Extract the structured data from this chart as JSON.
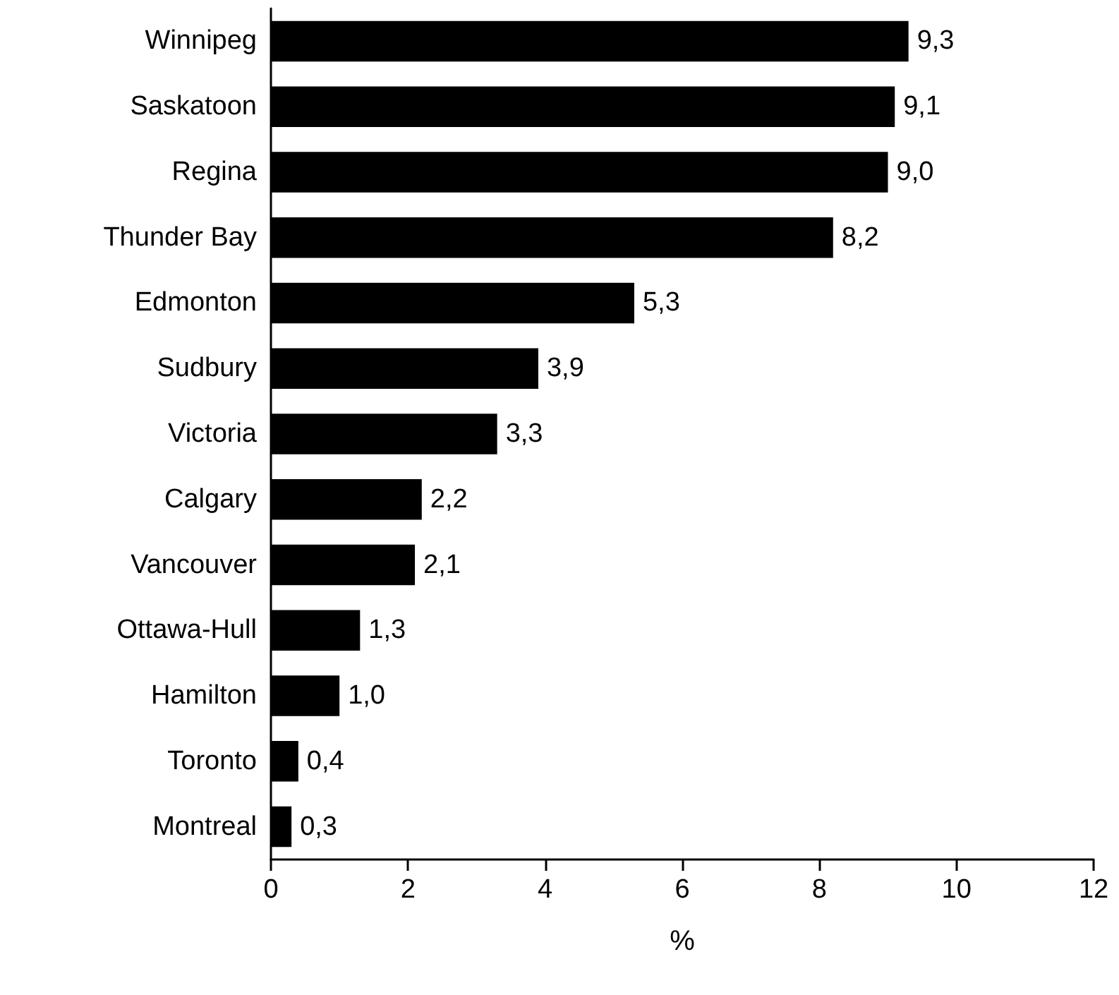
{
  "chart_data": {
    "type": "bar",
    "orientation": "horizontal",
    "xlabel": "%",
    "categories": [
      "Winnipeg",
      "Saskatoon",
      "Regina",
      "Thunder Bay",
      "Edmonton",
      "Sudbury",
      "Victoria",
      "Calgary",
      "Vancouver",
      "Ottawa-Hull",
      "Hamilton",
      "Toronto",
      "Montreal"
    ],
    "values": [
      9.3,
      9.1,
      9.0,
      8.2,
      5.3,
      3.9,
      3.3,
      2.2,
      2.1,
      1.3,
      1.0,
      0.4,
      0.3
    ],
    "value_labels": [
      "9,3",
      "9,1",
      "9,0",
      "8,2",
      "5,3",
      "3,9",
      "3,3",
      "2,2",
      "2,1",
      "1,3",
      "1,0",
      "0,4",
      "0,3"
    ],
    "color": "#000000",
    "xlim": [
      0,
      12
    ],
    "xticks": [
      0,
      2,
      4,
      6,
      8,
      10,
      12
    ],
    "grid": false
  }
}
